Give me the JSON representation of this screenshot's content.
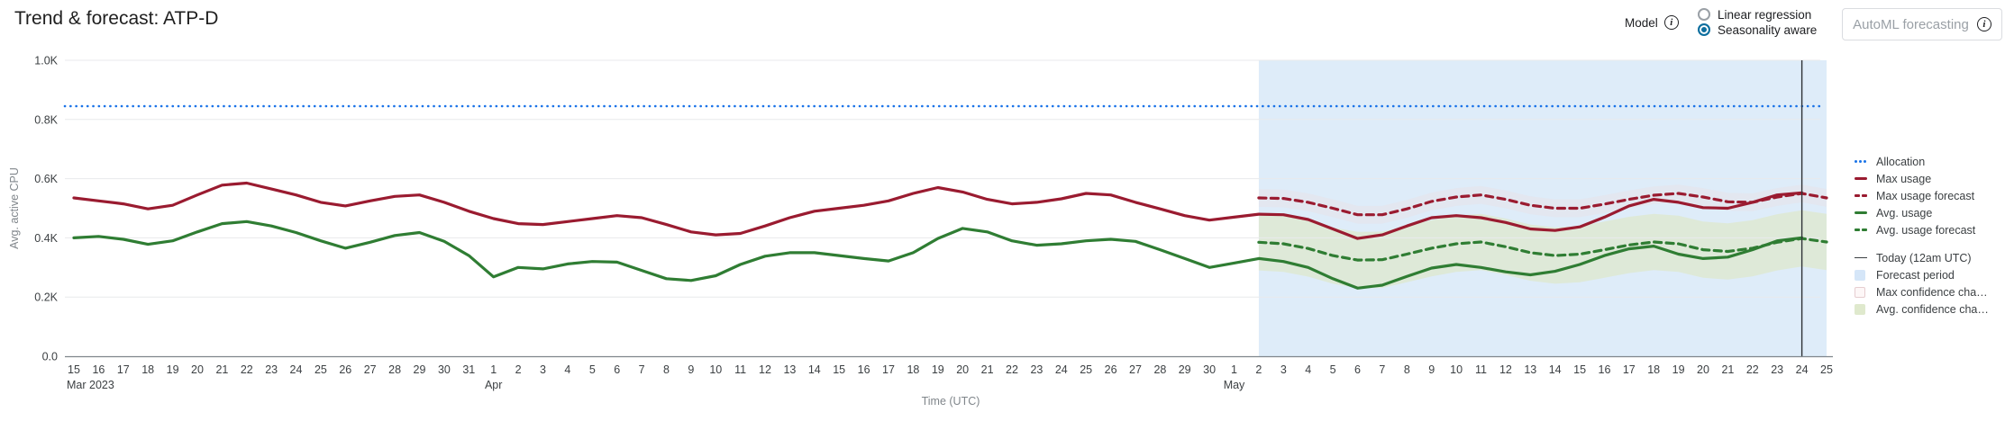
{
  "icons": {
    "info": "i"
  },
  "header": {
    "title": "Trend & forecast: ATP-D",
    "model_label": "Model",
    "radio_options": [
      {
        "label": "Linear regression",
        "selected": false
      },
      {
        "label": "Seasonality aware",
        "selected": true
      }
    ],
    "automl_button_label": "AutoML forecasting"
  },
  "legend": {
    "items": [
      {
        "label": "Allocation",
        "type": "dotted-line",
        "color": "#1a73e8",
        "gap_before": false
      },
      {
        "label": "Max usage",
        "type": "solid-line",
        "color": "#9a1b30",
        "gap_before": false
      },
      {
        "label": "Max usage forecast",
        "type": "dashed-line",
        "color": "#9a1b30",
        "gap_before": false
      },
      {
        "label": "Avg. usage",
        "type": "solid-line",
        "color": "#2f7d33",
        "gap_before": false
      },
      {
        "label": "Avg. usage forecast",
        "type": "dashed-line",
        "color": "#2f7d33",
        "gap_before": false
      },
      {
        "label": "Today (12am UTC)",
        "type": "thin-line",
        "color": "#3c4043",
        "gap_before": true
      },
      {
        "label": "Forecast period",
        "type": "swatch",
        "color": "#d5e6f8",
        "gap_before": false
      },
      {
        "label": "Max confidence cha…",
        "type": "swatch-outline",
        "color": "#fdf7f7",
        "border": "#e6cdd0",
        "gap_before": false
      },
      {
        "label": "Avg. confidence cha…",
        "type": "swatch",
        "color": "#dfe9cd",
        "gap_before": false
      }
    ]
  },
  "chart_data": {
    "type": "line",
    "title": "Trend & forecast: ATP-D",
    "xlabel": "Time (UTC)",
    "ylabel": "Avg. active CPU",
    "ylim": [
      0,
      1.0
    ],
    "y_ticks": [
      {
        "label": "1.0K",
        "value": 1.0
      },
      {
        "label": "0.8K",
        "value": 0.8
      },
      {
        "label": "0.6K",
        "value": 0.6
      },
      {
        "label": "0.4K",
        "value": 0.4
      },
      {
        "label": "0.2K",
        "value": 0.2
      },
      {
        "label": "0.0",
        "value": 0
      }
    ],
    "x_labels": [
      "15",
      "16",
      "17",
      "18",
      "19",
      "20",
      "21",
      "22",
      "23",
      "24",
      "25",
      "26",
      "27",
      "28",
      "29",
      "30",
      "31",
      "1",
      "2",
      "3",
      "4",
      "5",
      "6",
      "7",
      "8",
      "9",
      "10",
      "11",
      "12",
      "13",
      "14",
      "15",
      "16",
      "17",
      "18",
      "19",
      "20",
      "21",
      "22",
      "23",
      "24",
      "25",
      "26",
      "27",
      "28",
      "29",
      "30",
      "1",
      "2",
      "3",
      "4",
      "5",
      "6",
      "7",
      "8",
      "9",
      "10",
      "11",
      "12",
      "13",
      "14",
      "15",
      "16",
      "17",
      "18",
      "19",
      "20",
      "21",
      "22",
      "23",
      "24",
      "25"
    ],
    "month_markers": [
      {
        "index": 0,
        "label": "Mar 2023",
        "anchor": "start"
      },
      {
        "index": 17,
        "label": "Apr",
        "anchor": "middle"
      },
      {
        "index": 47,
        "label": "May",
        "anchor": "middle"
      }
    ],
    "allocation_value": 0.845,
    "forecast_start_index": 48,
    "today_index": 70,
    "today_label": "Today (12am UTC)",
    "series": [
      {
        "name": "Max usage",
        "style": "solid",
        "color": "#9a1b30",
        "start_index": 0,
        "values": [
          0.535,
          0.525,
          0.515,
          0.498,
          0.51,
          0.545,
          0.578,
          0.585,
          0.565,
          0.545,
          0.52,
          0.508,
          0.525,
          0.54,
          0.545,
          0.52,
          0.49,
          0.465,
          0.448,
          0.445,
          0.455,
          0.465,
          0.475,
          0.468,
          0.445,
          0.42,
          0.41,
          0.415,
          0.44,
          0.468,
          0.49,
          0.5,
          0.51,
          0.525,
          0.55,
          0.57,
          0.555,
          0.53,
          0.515,
          0.52,
          0.532,
          0.55,
          0.545,
          0.52,
          0.498,
          0.475,
          0.46,
          0.47,
          0.48,
          0.478,
          0.462,
          0.43,
          0.398,
          0.41,
          0.44,
          0.468,
          0.475,
          0.468,
          0.452,
          0.43,
          0.425,
          0.437,
          0.47,
          0.508,
          0.53,
          0.52,
          0.502,
          0.5,
          0.52,
          0.545,
          0.552
        ]
      },
      {
        "name": "Avg. usage",
        "style": "solid",
        "color": "#2f7d33",
        "start_index": 0,
        "values": [
          0.4,
          0.405,
          0.395,
          0.378,
          0.39,
          0.42,
          0.448,
          0.455,
          0.44,
          0.418,
          0.39,
          0.365,
          0.385,
          0.408,
          0.418,
          0.388,
          0.34,
          0.268,
          0.3,
          0.295,
          0.312,
          0.32,
          0.318,
          0.29,
          0.262,
          0.256,
          0.272,
          0.31,
          0.338,
          0.35,
          0.35,
          0.34,
          0.33,
          0.322,
          0.35,
          0.398,
          0.432,
          0.42,
          0.39,
          0.375,
          0.38,
          0.39,
          0.395,
          0.388,
          0.36,
          0.33,
          0.3,
          0.315,
          0.33,
          0.32,
          0.3,
          0.262,
          0.23,
          0.24,
          0.27,
          0.298,
          0.31,
          0.3,
          0.285,
          0.275,
          0.287,
          0.31,
          0.34,
          0.363,
          0.372,
          0.345,
          0.33,
          0.335,
          0.36,
          0.39,
          0.4
        ]
      },
      {
        "name": "Max usage forecast",
        "style": "dashed",
        "color": "#9a1b30",
        "start_index": 48,
        "values": [
          0.535,
          0.533,
          0.52,
          0.5,
          0.478,
          0.478,
          0.498,
          0.523,
          0.538,
          0.545,
          0.53,
          0.51,
          0.5,
          0.5,
          0.514,
          0.53,
          0.544,
          0.55,
          0.538,
          0.522,
          0.52,
          0.538,
          0.55,
          0.535
        ]
      },
      {
        "name": "Avg. usage forecast",
        "style": "dashed",
        "color": "#2f7d33",
        "start_index": 48,
        "values": [
          0.385,
          0.38,
          0.364,
          0.34,
          0.325,
          0.326,
          0.345,
          0.365,
          0.38,
          0.386,
          0.37,
          0.35,
          0.34,
          0.345,
          0.36,
          0.376,
          0.386,
          0.38,
          0.36,
          0.354,
          0.365,
          0.385,
          0.398,
          0.386
        ]
      }
    ],
    "confidence_bands": [
      {
        "name": "Max confidence change",
        "around": "Max usage forecast",
        "delta": 0.03,
        "color": "#f0d9d9",
        "opacity": 0.3
      },
      {
        "name": "Avg confidence change",
        "around": "Avg. usage forecast",
        "delta": 0.095,
        "color": "#dde8c2",
        "opacity": 0.6
      }
    ],
    "colors": {
      "allocation": "#1a73e8",
      "forecast_bg": "#deecf9",
      "today_line": "#2f3337",
      "grid": "#e8eaec",
      "axis": "#7f868c",
      "tick_text": "#3c4043",
      "axis_label_text": "#80868b"
    },
    "legend_position": "right",
    "grid": true
  }
}
